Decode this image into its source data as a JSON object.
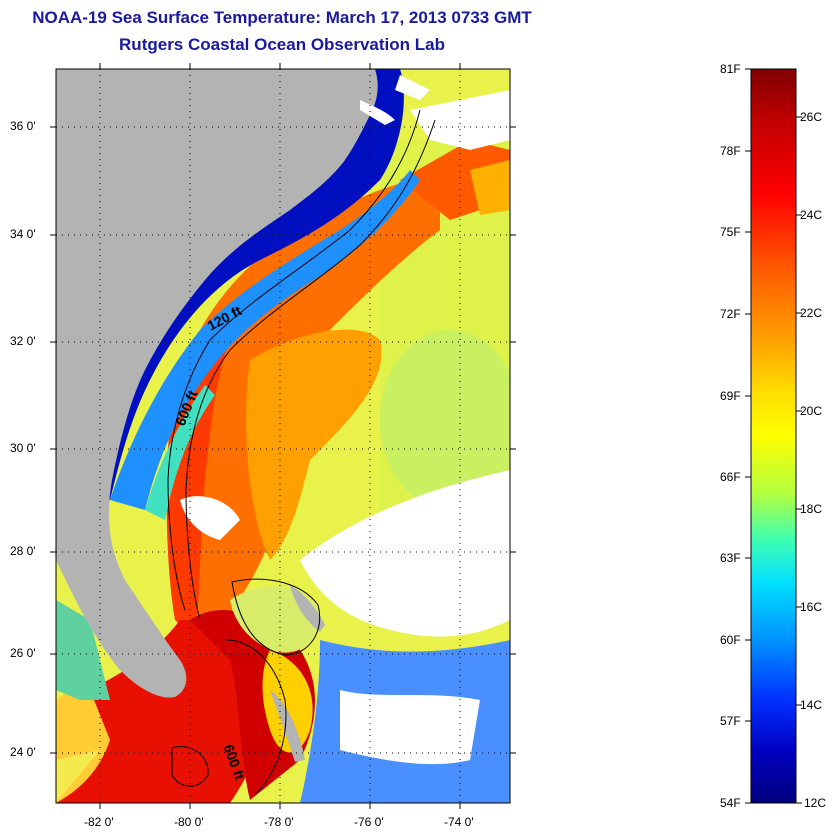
{
  "title": {
    "line1": "NOAA-19 Sea Surface Temperature:  March 17, 2013 0733 GMT",
    "line2": "Rutgers Coastal Ocean Observation Lab"
  },
  "map": {
    "lat_labels": [
      "36 0'",
      "34 0'",
      "32 0'",
      "30 0'",
      "28 0'",
      "26 0'",
      "24 0'"
    ],
    "lon_labels": [
      "-82 0'",
      "-80 0'",
      "-78 0'",
      "-76 0'",
      "-74 0'"
    ],
    "isobaths": [
      "120 ft",
      "600 ft",
      "600 ft"
    ],
    "colors": {
      "land": "#b3b3b3",
      "cloud": "#ffffff",
      "frame": "#000000"
    }
  },
  "colorbar": {
    "fahrenheit_ticks": [
      "81F",
      "78F",
      "75F",
      "72F",
      "69F",
      "66F",
      "63F",
      "60F",
      "57F",
      "54F"
    ],
    "celsius_ticks": [
      "26C",
      "24C",
      "22C",
      "20C",
      "18C",
      "16C",
      "14C",
      "12C"
    ],
    "colors": [
      "#800000",
      "#c00000",
      "#ff0000",
      "#ff6000",
      "#ff9900",
      "#ffcc00",
      "#ffff00",
      "#b0ff40",
      "#40ffb0",
      "#00e0ff",
      "#0090ff",
      "#0030ff",
      "#0000c0",
      "#00007f"
    ]
  }
}
